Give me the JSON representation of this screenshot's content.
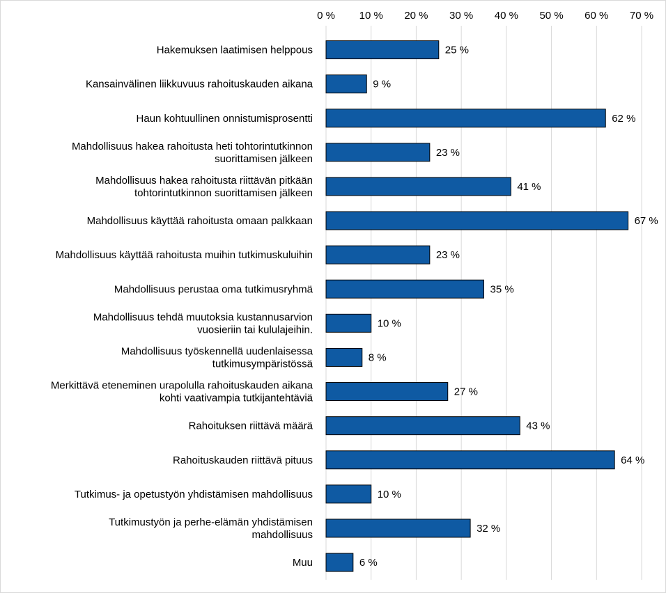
{
  "chart_data": {
    "type": "bar",
    "orientation": "horizontal",
    "title": "",
    "xlabel": "",
    "ylabel": "",
    "xlim": [
      0,
      70
    ],
    "x_ticks": [
      0,
      10,
      20,
      30,
      40,
      50,
      60,
      70
    ],
    "tick_labels": [
      "0 %",
      "10 %",
      "20 %",
      "30 %",
      "40 %",
      "50 %",
      "60 %",
      "70 %"
    ],
    "x_axis_position": "top",
    "grid": true,
    "legend": "none",
    "bar_color": "#0f5aa3",
    "bar_outline_color": "#000000",
    "grid_color": "#d9d9d9",
    "categories": [
      [
        "Hakemuksen laatimisen helppous"
      ],
      [
        "Kansainvälinen liikkuvuus rahoituskauden aikana"
      ],
      [
        "Haun kohtuullinen onnistumisprosentti"
      ],
      [
        "Mahdollisuus hakea rahoitusta heti tohtorintutkinnon",
        "suorittamisen jälkeen"
      ],
      [
        "Mahdollisuus hakea rahoitusta riittävän pitkään",
        "tohtorintutkinnon suorittamisen jälkeen"
      ],
      [
        "Mahdollisuus käyttää rahoitusta omaan palkkaan"
      ],
      [
        "Mahdollisuus käyttää rahoitusta muihin tutkimuskuluihin"
      ],
      [
        "Mahdollisuus perustaa oma tutkimusryhmä"
      ],
      [
        "Mahdollisuus tehdä muutoksia kustannusarvion",
        "vuosieriin tai kululajeihin."
      ],
      [
        "Mahdollisuus työskennellä uudenlaisessa",
        "tutkimusympäristössä"
      ],
      [
        "Merkittävä eteneminen urapolulla rahoituskauden aikana",
        "kohti vaativampia tutkijantehtäviä"
      ],
      [
        "Rahoituksen riittävä määrä"
      ],
      [
        "Rahoituskauden riittävä pituus"
      ],
      [
        "Tutkimus- ja opetustyön yhdistämisen mahdollisuus"
      ],
      [
        "Tutkimustyön ja perhe-elämän yhdistämisen",
        "mahdollisuus"
      ],
      [
        "Muu"
      ]
    ],
    "values": [
      25,
      9,
      62,
      23,
      41,
      67,
      23,
      35,
      10,
      8,
      27,
      43,
      64,
      10,
      32,
      6
    ],
    "value_labels": [
      "25 %",
      "9 %",
      "62 %",
      "23 %",
      "41 %",
      "67 %",
      "23 %",
      "35 %",
      "10 %",
      "8 %",
      "27 %",
      "43 %",
      "64 %",
      "10 %",
      "32 %",
      "6 %"
    ]
  }
}
